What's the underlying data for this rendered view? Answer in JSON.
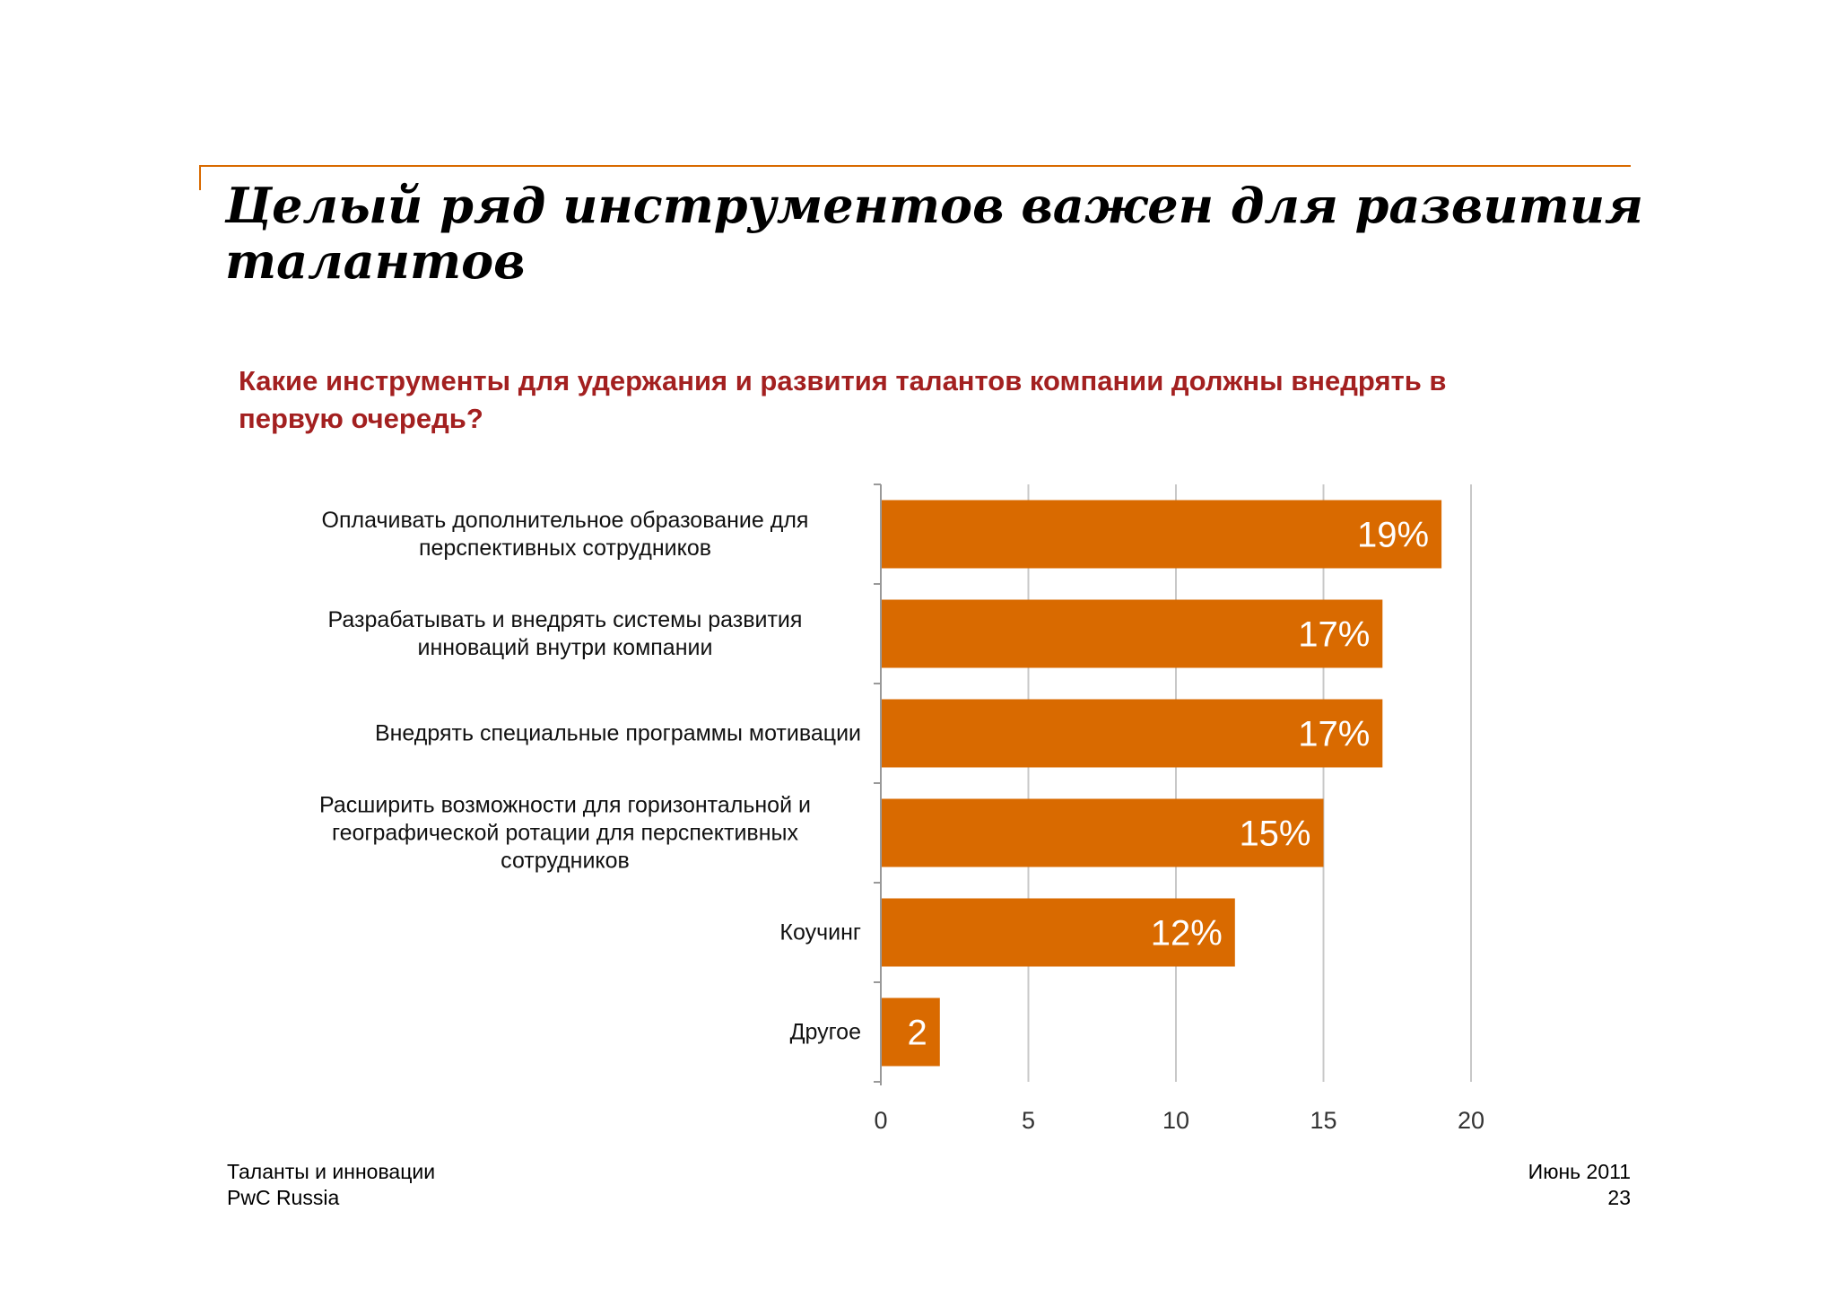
{
  "slide": {
    "title": "Целый ряд инструментов важен для развития талантов",
    "question": "Какие инструменты для удержания и развития талантов компании должны внедрять в первую очередь?"
  },
  "footer": {
    "left_line1": "Таланты и инновации",
    "left_line2": "PwC Russia",
    "right_line1": "Июнь 2011",
    "right_line2": "23"
  },
  "colors": {
    "bar": "#d96a00",
    "accent_line": "#d96a00",
    "question_text": "#a32020",
    "grid": "#c8c8c8"
  },
  "chart_data": {
    "type": "bar",
    "orientation": "horizontal",
    "categories": [
      "Оплачивать дополнительное образование для перспективных сотрудников",
      "Разрабатывать и внедрять системы развития инноваций внутри компании",
      "Внедрять специальные программы мотивации",
      "Расширить возможности для горизонтальной и географической ротации для перспективных сотрудников",
      "Коучинг",
      "Другое"
    ],
    "values": [
      19,
      17,
      17,
      15,
      12,
      2
    ],
    "data_labels": [
      "19%",
      "17%",
      "17%",
      "15%",
      "12%",
      "2"
    ],
    "xlim": [
      0,
      20
    ],
    "xticks": [
      0,
      5,
      10,
      15,
      20
    ],
    "xtick_labels": [
      "0",
      "5",
      "10",
      "15",
      "20"
    ],
    "grid": true
  }
}
